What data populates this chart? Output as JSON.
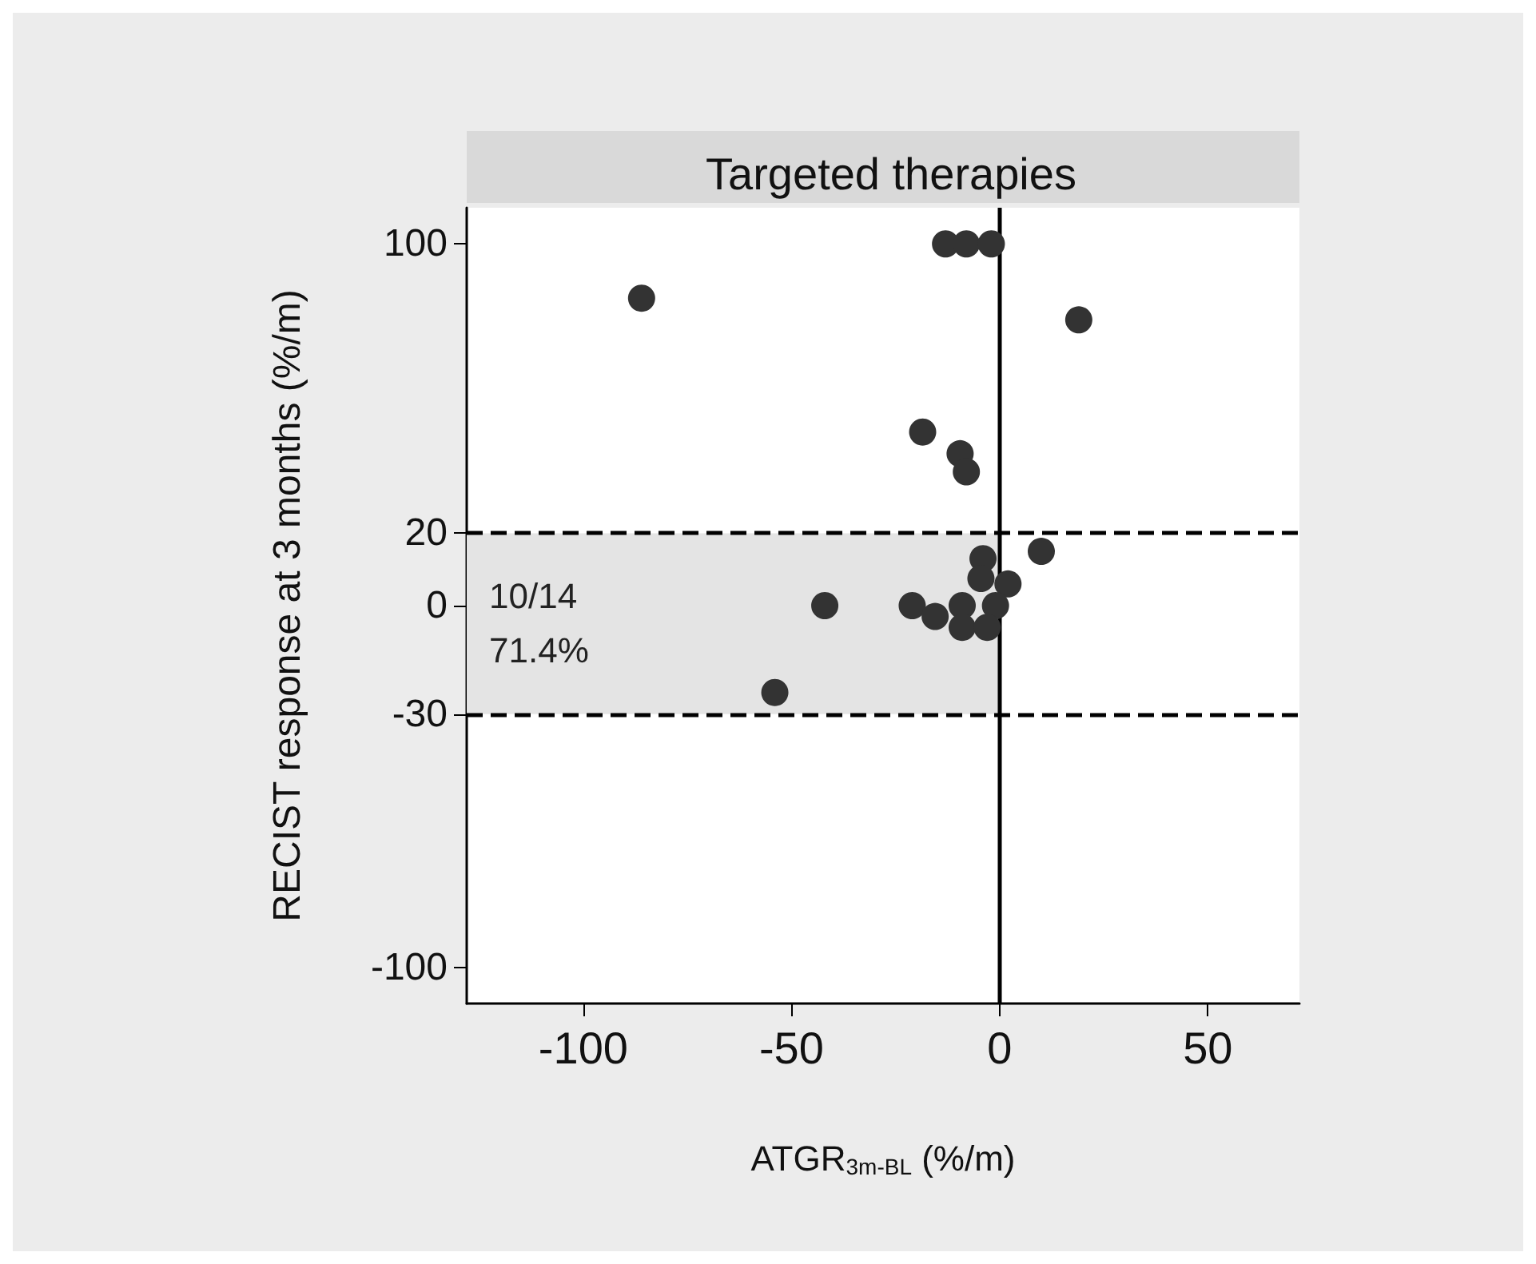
{
  "chart_data": {
    "type": "scatter",
    "title": "Targeted therapies",
    "xlabel": "ATGR$_{3m-BL}$ (%/m)",
    "ylabel": "RECIST response at 3 months (%/m)",
    "x": [
      -86,
      -13,
      -8,
      -2,
      19,
      -18.5,
      -9.5,
      -8,
      10,
      -4,
      -4.5,
      2,
      -42,
      -21,
      -15.5,
      -9,
      -9,
      -1,
      -3,
      -54
    ],
    "values": [
      85,
      100,
      100,
      100,
      79,
      48,
      42,
      37,
      15,
      13,
      7.5,
      6,
      0,
      0,
      -3,
      0,
      -6,
      0,
      -6,
      -24
    ],
    "color": "#333333",
    "marker": "circle",
    "xlim": [
      -128,
      72
    ],
    "xticks": [
      -100,
      -50,
      0,
      50
    ],
    "ylim": [
      -110,
      110
    ],
    "yticks": [
      -100,
      -30,
      0,
      20,
      100
    ],
    "grid": false,
    "ref_lines": [
      {
        "axis": "y",
        "value": 20,
        "line_style": "dashed",
        "color": "#000000"
      },
      {
        "axis": "y",
        "value": -30,
        "line_style": "dashed",
        "color": "#000000"
      },
      {
        "axis": "x",
        "value": 0,
        "line_style": "solid",
        "color": "#000000"
      }
    ],
    "bands": [
      {
        "axis": "y",
        "from": -30,
        "to": 20,
        "color": "#e4e4e4"
      }
    ],
    "annotations": [
      "10/14\n71.4%"
    ]
  }
}
